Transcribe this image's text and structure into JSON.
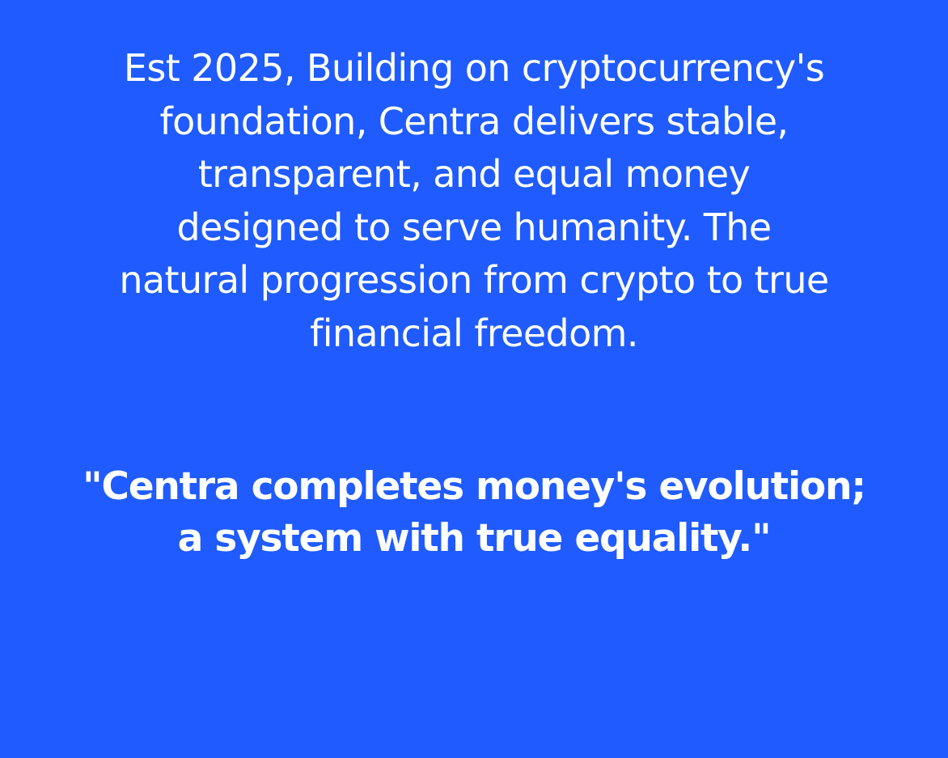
{
  "content": {
    "intro_text": "Est 2025, Building on cryptocurrency's\nfoundation, Centra delivers stable,\ntransparent, and equal money\ndesigned to serve humanity. The\nnatural progression from crypto to true\nfinancial freedom.",
    "quote_text": "\"Centra completes money's evolution;\na system with true equality.\""
  },
  "theme": {
    "background_color": "#1f5bff",
    "text_color": "#ffffff"
  }
}
